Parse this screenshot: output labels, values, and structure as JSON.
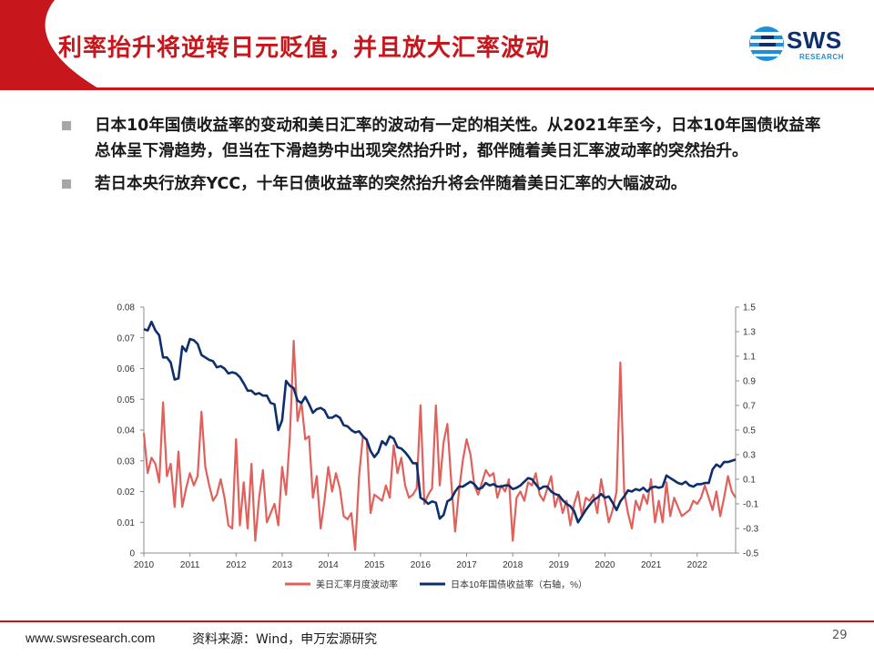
{
  "header": {
    "title": "利率抬升将逆转日元贬值，并且放大汇率波动",
    "logo_text": "SWS",
    "logo_sub": "RESEARCH"
  },
  "bullets": [
    "日本10年国债收益率的变动和美日汇率的波动有一定的相关性。从2021年至今，日本10年国债收益率总体呈下滑趋势，但当在下滑趋势中出现突然抬升时，都伴随着美日汇率波动率的突然抬升。",
    "若日本央行放弃YCC，十年日债收益率的突然抬升将会伴随着美日汇率的大幅波动。"
  ],
  "footer": {
    "url": "www.swsresearch.com",
    "source": "资料来源：Wind，申万宏源研究",
    "page": "29"
  },
  "colors": {
    "brand_red": "#c8161d",
    "series_red": "#e0605b",
    "series_blue": "#0d2f6e"
  },
  "chart_data": {
    "type": "line",
    "x_ticks": [
      "2010",
      "2011",
      "2012",
      "2013",
      "2014",
      "2015",
      "2016",
      "2017",
      "2018",
      "2019",
      "2020",
      "2021",
      "2022"
    ],
    "y_left": {
      "lim": [
        0,
        0.08
      ],
      "ticks": [
        "0",
        "0.01",
        "0.02",
        "0.03",
        "0.04",
        "0.05",
        "0.06",
        "0.07",
        "0.08"
      ]
    },
    "y_right": {
      "lim": [
        -0.5,
        1.5
      ],
      "ticks": [
        "-0.5",
        "-0.3",
        "-0.1",
        "0.1",
        "0.3",
        "0.5",
        "0.7",
        "0.9",
        "1.1",
        "1.3",
        "1.5"
      ]
    },
    "series": [
      {
        "name": "美日汇率月度波动率",
        "axis": "left",
        "x_range": [
          "2010-01",
          "2022-11"
        ],
        "values": [
          0.039,
          0.026,
          0.031,
          0.029,
          0.023,
          0.049,
          0.025,
          0.029,
          0.015,
          0.033,
          0.015,
          0.021,
          0.026,
          0.022,
          0.025,
          0.046,
          0.028,
          0.022,
          0.017,
          0.019,
          0.024,
          0.018,
          0.009,
          0.008,
          0.037,
          0.009,
          0.023,
          0.008,
          0.029,
          0.004,
          0.018,
          0.027,
          0.01,
          0.013,
          0.016,
          0.009,
          0.028,
          0.019,
          0.038,
          0.069,
          0.043,
          0.049,
          0.037,
          0.038,
          0.018,
          0.025,
          0.008,
          0.017,
          0.028,
          0.02,
          0.026,
          0.021,
          0.012,
          0.011,
          0.013,
          0.001,
          0.025,
          0.038,
          0.037,
          0.013,
          0.019,
          0.018,
          0.017,
          0.022,
          0.018,
          0.035,
          0.026,
          0.031,
          0.022,
          0.018,
          0.019,
          0.021,
          0.048,
          0.016,
          0.019,
          0.021,
          0.048,
          0.022,
          0.036,
          0.042,
          0.023,
          0.007,
          0.02,
          0.03,
          0.037,
          0.032,
          0.022,
          0.019,
          0.023,
          0.027,
          0.025,
          0.026,
          0.018,
          0.022,
          0.02,
          0.024,
          0.004,
          0.018,
          0.02,
          0.017,
          0.023,
          0.022,
          0.026,
          0.019,
          0.017,
          0.021,
          0.025,
          0.015,
          0.019,
          0.013,
          0.017,
          0.009,
          0.016,
          0.02,
          0.012,
          0.018,
          0.017,
          0.019,
          0.013,
          0.024,
          0.017,
          0.01,
          0.014,
          0.02,
          0.062,
          0.02,
          0.013,
          0.008,
          0.017,
          0.014,
          0.019,
          0.016,
          0.024,
          0.01,
          0.017,
          0.01,
          0.023,
          0.012,
          0.018,
          0.015,
          0.012,
          0.013,
          0.014,
          0.017,
          0.016,
          0.018,
          0.022,
          0.018,
          0.014,
          0.02,
          0.012,
          0.018,
          0.025,
          0.02,
          0.018
        ]
      },
      {
        "name": "日本10年国债收益率（右轴，%）",
        "axis": "right",
        "x_range": [
          "2010-01",
          "2022-11"
        ],
        "values": [
          1.32,
          1.31,
          1.38,
          1.31,
          1.27,
          1.09,
          1.09,
          1.05,
          0.91,
          0.92,
          1.18,
          1.14,
          1.24,
          1.23,
          1.2,
          1.11,
          1.09,
          1.07,
          1.06,
          1.01,
          1.02,
          1.0,
          0.96,
          0.97,
          0.96,
          0.93,
          0.88,
          0.82,
          0.82,
          0.79,
          0.8,
          0.78,
          0.78,
          0.72,
          0.71,
          0.5,
          0.58,
          0.9,
          0.86,
          0.84,
          0.74,
          0.72,
          0.77,
          0.71,
          0.64,
          0.67,
          0.68,
          0.66,
          0.6,
          0.6,
          0.62,
          0.6,
          0.54,
          0.53,
          0.5,
          0.48,
          0.49,
          0.45,
          0.42,
          0.33,
          0.28,
          0.32,
          0.41,
          0.38,
          0.45,
          0.43,
          0.36,
          0.35,
          0.32,
          0.28,
          0.23,
          0.23,
          -0.05,
          -0.07,
          -0.1,
          -0.08,
          -0.09,
          -0.22,
          -0.19,
          -0.08,
          -0.06,
          0.0,
          0.04,
          0.04,
          0.06,
          0.08,
          0.06,
          0.02,
          0.03,
          0.07,
          0.05,
          0.06,
          0.04,
          0.04,
          0.05,
          0.05,
          0.02,
          0.03,
          0.05,
          0.08,
          0.11,
          0.1,
          0.06,
          0.02,
          0.04,
          0.04,
          0.0,
          -0.02,
          -0.03,
          -0.07,
          -0.1,
          -0.12,
          -0.16,
          -0.25,
          -0.2,
          -0.15,
          -0.11,
          -0.07,
          -0.05,
          -0.02,
          -0.05,
          -0.04,
          -0.09,
          -0.15,
          -0.08,
          -0.04,
          0.01,
          0.0,
          0.02,
          0.01,
          0.03,
          0.0,
          0.03,
          0.04,
          0.03,
          0.04,
          0.13,
          0.11,
          0.09,
          0.07,
          0.06,
          0.08,
          0.05,
          0.04,
          0.06,
          0.06,
          0.07,
          0.07,
          0.18,
          0.22,
          0.2,
          0.24,
          0.24,
          0.25,
          0.26
        ]
      }
    ]
  }
}
